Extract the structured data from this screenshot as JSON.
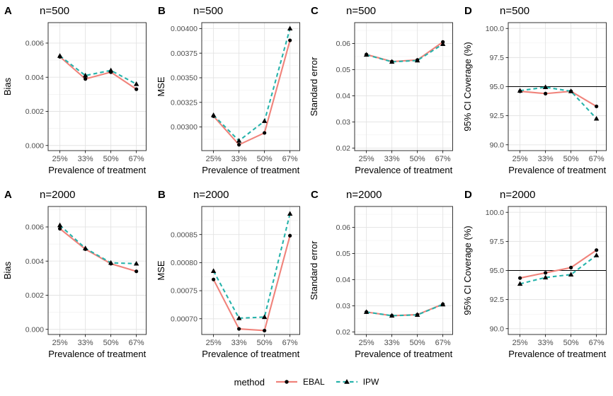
{
  "figure": {
    "background": "#ffffff",
    "legend": {
      "title": "method",
      "entries": [
        {
          "label": "EBAL",
          "color": "#F0837B",
          "linestyle": "solid",
          "marker": "circle"
        },
        {
          "label": "IPW",
          "color": "#27B3AB",
          "linestyle": "dashed",
          "marker": "triangle"
        }
      ]
    },
    "colors": {
      "ebal": "#F0837B",
      "ipw": "#27B3AB",
      "marker": "#000000",
      "grid_major": "#E3E3E3",
      "grid_minor": "#F2F2F2",
      "panel_border": "#333333",
      "tick_text": "#4D4D4D",
      "axis_title_text": "#000000",
      "refline": "#000000"
    }
  },
  "chart_data": [
    {
      "type": "line",
      "panel_label": "A",
      "title": "n=500",
      "xlabel": "Prevalence of treatment",
      "ylabel": "Bias",
      "categories": [
        "25%",
        "33%",
        "50%",
        "67%"
      ],
      "yticks": [
        0,
        0.002,
        0.004,
        0.006
      ],
      "ytick_labels": [
        "0.000",
        "0.002",
        "0.004",
        "0.006"
      ],
      "ylim": [
        -0.0003,
        0.0072
      ],
      "refline": null,
      "legend_position": "none",
      "grid": true,
      "series": [
        {
          "name": "EBAL",
          "values": [
            0.0052,
            0.0039,
            0.0043,
            0.0033
          ]
        },
        {
          "name": "IPW",
          "values": [
            0.00525,
            0.0041,
            0.0044,
            0.0036
          ]
        }
      ]
    },
    {
      "type": "line",
      "panel_label": "B",
      "title": "n=500",
      "xlabel": "Prevalence of treatment",
      "ylabel": "MSE",
      "categories": [
        "25%",
        "33%",
        "50%",
        "67%"
      ],
      "yticks": [
        0.003,
        0.00325,
        0.0035,
        0.00375,
        0.004
      ],
      "ytick_labels": [
        "0.00300",
        "0.00325",
        "0.00350",
        "0.00375",
        "0.00400"
      ],
      "ylim": [
        0.00276,
        0.00406
      ],
      "refline": null,
      "legend_position": "none",
      "grid": true,
      "series": [
        {
          "name": "EBAL",
          "values": [
            0.00311,
            0.00282,
            0.00294,
            0.00388
          ]
        },
        {
          "name": "IPW",
          "values": [
            0.00312,
            0.00286,
            0.00306,
            0.004
          ]
        }
      ]
    },
    {
      "type": "line",
      "panel_label": "C",
      "title": "n=500",
      "xlabel": "Prevalence of treatment",
      "ylabel": "Standard error",
      "categories": [
        "25%",
        "33%",
        "50%",
        "67%"
      ],
      "yticks": [
        0.02,
        0.03,
        0.04,
        0.05,
        0.06
      ],
      "ytick_labels": [
        "0.02",
        "0.03",
        "0.04",
        "0.05",
        "0.06"
      ],
      "ylim": [
        0.019,
        0.068
      ],
      "refline": null,
      "legend_position": "none",
      "grid": true,
      "series": [
        {
          "name": "EBAL",
          "values": [
            0.0558,
            0.0531,
            0.0537,
            0.0606
          ]
        },
        {
          "name": "IPW",
          "values": [
            0.0557,
            0.053,
            0.0535,
            0.0598
          ]
        }
      ]
    },
    {
      "type": "line",
      "panel_label": "D",
      "title": "n=500",
      "xlabel": "Prevalence of treatment",
      "ylabel": "95% CI Coverage (%)",
      "categories": [
        "25%",
        "33%",
        "50%",
        "67%"
      ],
      "yticks": [
        90,
        92.5,
        95,
        97.5,
        100
      ],
      "ytick_labels": [
        "90.0",
        "92.5",
        "95.0",
        "97.5",
        "100.0"
      ],
      "ylim": [
        89.5,
        100.5
      ],
      "refline": 95,
      "legend_position": "none",
      "grid": true,
      "series": [
        {
          "name": "EBAL",
          "values": [
            94.6,
            94.4,
            94.6,
            93.3
          ]
        },
        {
          "name": "IPW",
          "values": [
            94.65,
            94.95,
            94.6,
            92.25
          ]
        }
      ]
    },
    {
      "type": "line",
      "panel_label": "A",
      "title": "n=2000",
      "xlabel": "Prevalence of treatment",
      "ylabel": "Bias",
      "categories": [
        "25%",
        "33%",
        "50%",
        "67%"
      ],
      "yticks": [
        0,
        0.002,
        0.004,
        0.006
      ],
      "ytick_labels": [
        "0.000",
        "0.002",
        "0.004",
        "0.006"
      ],
      "ylim": [
        -0.0003,
        0.0072
      ],
      "refline": null,
      "legend_position": "none",
      "grid": true,
      "series": [
        {
          "name": "EBAL",
          "values": [
            0.0059,
            0.0047,
            0.00385,
            0.0034
          ]
        },
        {
          "name": "IPW",
          "values": [
            0.0061,
            0.00475,
            0.0039,
            0.00385
          ]
        }
      ]
    },
    {
      "type": "line",
      "panel_label": "B",
      "title": "n=2000",
      "xlabel": "Prevalence of treatment",
      "ylabel": "MSE",
      "categories": [
        "25%",
        "33%",
        "50%",
        "67%"
      ],
      "yticks": [
        0.0007,
        0.00075,
        0.0008,
        0.00085
      ],
      "ytick_labels": [
        "0.00070",
        "0.00075",
        "0.00080",
        "0.00085"
      ],
      "ylim": [
        0.000672,
        0.0009
      ],
      "refline": null,
      "legend_position": "none",
      "grid": true,
      "series": [
        {
          "name": "EBAL",
          "values": [
            0.00077,
            0.000682,
            0.000679,
            0.000848
          ]
        },
        {
          "name": "IPW",
          "values": [
            0.000785,
            0.000701,
            0.000703,
            0.000887
          ]
        }
      ]
    },
    {
      "type": "line",
      "panel_label": "C",
      "title": "n=2000",
      "xlabel": "Prevalence of treatment",
      "ylabel": "Standard error",
      "categories": [
        "25%",
        "33%",
        "50%",
        "67%"
      ],
      "yticks": [
        0.02,
        0.03,
        0.04,
        0.05,
        0.06
      ],
      "ytick_labels": [
        "0.02",
        "0.03",
        "0.04",
        "0.05",
        "0.06"
      ],
      "ylim": [
        0.019,
        0.068
      ],
      "refline": null,
      "legend_position": "none",
      "grid": true,
      "series": [
        {
          "name": "EBAL",
          "values": [
            0.0276,
            0.0262,
            0.0266,
            0.0306
          ]
        },
        {
          "name": "IPW",
          "values": [
            0.0276,
            0.0262,
            0.0265,
            0.0305
          ]
        }
      ]
    },
    {
      "type": "line",
      "panel_label": "D",
      "title": "n=2000",
      "xlabel": "Prevalence of treatment",
      "ylabel": "95% CI Coverage (%)",
      "categories": [
        "25%",
        "33%",
        "50%",
        "67%"
      ],
      "yticks": [
        90,
        92.5,
        95,
        97.5,
        100
      ],
      "ytick_labels": [
        "90.0",
        "92.5",
        "95.0",
        "97.5",
        "100.0"
      ],
      "ylim": [
        89.5,
        100.5
      ],
      "refline": 95,
      "legend_position": "none",
      "grid": true,
      "series": [
        {
          "name": "EBAL",
          "values": [
            94.35,
            94.8,
            95.25,
            96.75
          ]
        },
        {
          "name": "IPW",
          "values": [
            93.85,
            94.4,
            94.65,
            96.3
          ]
        }
      ]
    }
  ]
}
